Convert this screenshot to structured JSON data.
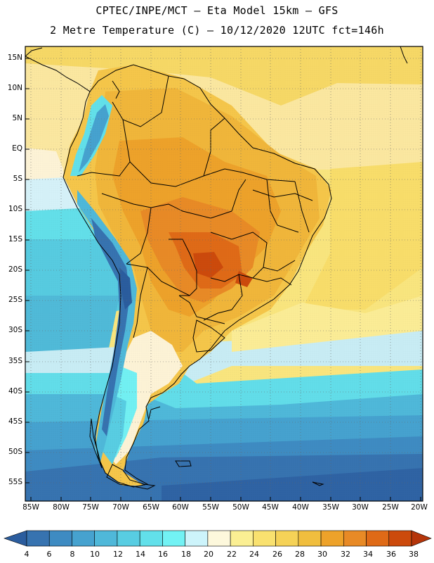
{
  "header": {
    "line1": "CPTEC/INPE/MCT –  Eta Model 15km – GFS",
    "line2": "2 Metre Temperature (C) – 10/12/2020 12UTC fct=146h"
  },
  "map": {
    "region": "South America",
    "lat_labels": [
      "15N",
      "10N",
      "5N",
      "EQ",
      "5S",
      "10S",
      "15S",
      "20S",
      "25S",
      "30S",
      "35S",
      "40S",
      "45S",
      "50S",
      "55S"
    ],
    "lon_labels": [
      "85W",
      "80W",
      "75W",
      "70W",
      "65W",
      "60W",
      "55W",
      "50W",
      "45W",
      "40W",
      "35W",
      "30W",
      "25W",
      "20W"
    ],
    "lat_range": [
      17,
      -58
    ],
    "lon_range": [
      -85,
      -20
    ]
  },
  "colorbar": {
    "labels": [
      "4",
      "6",
      "8",
      "10",
      "12",
      "14",
      "16",
      "18",
      "20",
      "22",
      "24",
      "26",
      "28",
      "30",
      "32",
      "34",
      "36",
      "38"
    ],
    "colors": [
      "#2b5d9e",
      "#3773b0",
      "#3e8bc2",
      "#46a2cf",
      "#4fb8d9",
      "#58cde2",
      "#62e0ea",
      "#72f2f4",
      "#cdf4fb",
      "#fdf8dc",
      "#fbef93",
      "#f9e16f",
      "#f5d257",
      "#f0be3e",
      "#eda22a",
      "#e88a26",
      "#df6a17",
      "#cc4a0c",
      "#b5350a"
    ]
  }
}
